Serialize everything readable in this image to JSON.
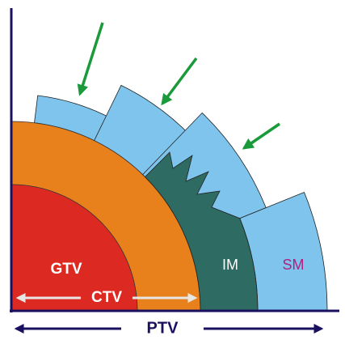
{
  "labels": {
    "gtv": "GTV",
    "ctv": "CTV",
    "im": "IM",
    "sm": "SM",
    "ptv": "PTV"
  }
}
